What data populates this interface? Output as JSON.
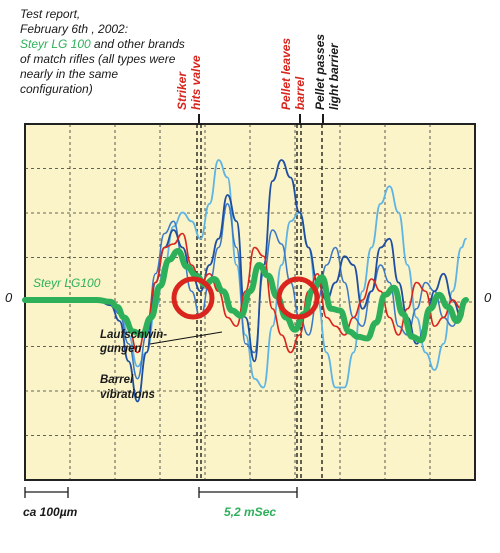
{
  "header_note": {
    "line1": "Test report,",
    "line2": "February 6th , 2002:",
    "line3_brand": "Steyr LG 100",
    "line3_rest": " and other brands",
    "line4": "of match rifles (all types were",
    "line5": "nearly in the same",
    "line6": "configuration)"
  },
  "markers": {
    "striker": [
      "Striker",
      "hits valve"
    ],
    "pellet_leaves": [
      "Pellet leaves",
      "barrel"
    ],
    "pellet_passes": [
      "Pellet passes",
      "light barrier"
    ]
  },
  "chart_labels": {
    "zero_left": "0",
    "zero_right": "0",
    "steyr": "Steyr LG100",
    "laufschwin_1": "Laufschwin-",
    "laufschwin_2": "gungen",
    "barrel_1": "Barrel",
    "barrel_2": "vibrations"
  },
  "scale": {
    "left": "ca 100µm",
    "right": "5,2 mSec"
  },
  "colors": {
    "background": "#fbf4c9",
    "grid": "#333333",
    "steyr_green": "#2eb05a",
    "red": "#d9251d",
    "dark_blue": "#1f4fa0",
    "mid_blue": "#3b78c5",
    "light_blue": "#5fb4e4",
    "marker_red": "#d9251d"
  },
  "chart_data": {
    "type": "line",
    "xlabel": "",
    "ylabel": "",
    "series": [
      {
        "name": "Steyr LG100",
        "color": "#2eb05a",
        "width": 6,
        "x": [
          0.0,
          0.16,
          0.19,
          0.205,
          0.22,
          0.24,
          0.26,
          0.28,
          0.3,
          0.32,
          0.34,
          0.36,
          0.38,
          0.4,
          0.42,
          0.44,
          0.46,
          0.48,
          0.5,
          0.52,
          0.54,
          0.56,
          0.58,
          0.6,
          0.62,
          0.64,
          0.66,
          0.68,
          0.7,
          0.72,
          0.74,
          0.76,
          0.78,
          0.8,
          0.82,
          0.84,
          0.86,
          0.88,
          0.9,
          0.92,
          0.94,
          0.96,
          0.98
        ],
        "y": [
          0.0,
          0.0,
          -0.01,
          -0.04,
          -0.1,
          -0.18,
          -0.2,
          -0.1,
          0.08,
          0.23,
          0.28,
          0.19,
          0.14,
          0.09,
          0.12,
          0.05,
          -0.06,
          -0.09,
          0.05,
          0.2,
          0.14,
          0.02,
          -0.1,
          -0.17,
          -0.08,
          0.06,
          0.13,
          -0.05,
          -0.06,
          -0.18,
          -0.21,
          -0.22,
          -0.13,
          0.03,
          0.07,
          -0.08,
          -0.21,
          -0.23,
          -0.05,
          0.03,
          -0.04,
          -0.12,
          0.0
        ]
      },
      {
        "name": "",
        "color": "#d9251d",
        "width": 1.6,
        "x": [
          0.16,
          0.19,
          0.21,
          0.23,
          0.25,
          0.27,
          0.29,
          0.31,
          0.33,
          0.35,
          0.37,
          0.39,
          0.41,
          0.43,
          0.45,
          0.47,
          0.49,
          0.51,
          0.53,
          0.55,
          0.57,
          0.59,
          0.61,
          0.63,
          0.65,
          0.67,
          0.69,
          0.71,
          0.73,
          0.75,
          0.77,
          0.79,
          0.81,
          0.83,
          0.85,
          0.87,
          0.89,
          0.91,
          0.93,
          0.95,
          0.97,
          0.98
        ],
        "y": [
          0.0,
          -0.02,
          -0.05,
          -0.15,
          -0.3,
          -0.15,
          0.1,
          0.3,
          0.32,
          0.38,
          0.2,
          0.1,
          0.15,
          0.05,
          -0.1,
          -0.15,
          0.05,
          0.3,
          0.25,
          -0.05,
          -0.2,
          -0.3,
          -0.2,
          0.05,
          0.15,
          -0.1,
          -0.15,
          -0.2,
          -0.1,
          0.0,
          0.12,
          0.05,
          -0.1,
          -0.2,
          -0.05,
          0.1,
          0.05,
          -0.15,
          -0.1,
          0.0,
          -0.05,
          0.0
        ]
      },
      {
        "name": "",
        "color": "#1f4fa0",
        "width": 1.8,
        "x": [
          0.16,
          0.19,
          0.21,
          0.23,
          0.25,
          0.27,
          0.29,
          0.31,
          0.33,
          0.35,
          0.37,
          0.39,
          0.41,
          0.43,
          0.45,
          0.47,
          0.49,
          0.51,
          0.53,
          0.55,
          0.57,
          0.59,
          0.61,
          0.63,
          0.65,
          0.67,
          0.69,
          0.71,
          0.73,
          0.75,
          0.77,
          0.79,
          0.81,
          0.83,
          0.85,
          0.87,
          0.89,
          0.91,
          0.93,
          0.95,
          0.97,
          0.98
        ],
        "y": [
          0.0,
          -0.03,
          -0.12,
          -0.35,
          -0.58,
          -0.3,
          0.1,
          0.3,
          0.4,
          0.3,
          0.15,
          0.05,
          0.2,
          0.35,
          0.6,
          0.45,
          -0.1,
          -0.35,
          0.2,
          0.68,
          0.8,
          0.7,
          0.5,
          0.3,
          0.1,
          0.0,
          0.1,
          0.25,
          0.2,
          -0.05,
          0.05,
          0.3,
          0.35,
          0.1,
          -0.1,
          -0.25,
          -0.15,
          0.05,
          0.15,
          0.0,
          -0.1,
          0.0
        ]
      },
      {
        "name": "",
        "color": "#3b78c5",
        "width": 1.5,
        "x": [
          0.16,
          0.19,
          0.21,
          0.23,
          0.25,
          0.27,
          0.29,
          0.31,
          0.33,
          0.35,
          0.37,
          0.39,
          0.41,
          0.43,
          0.45,
          0.47,
          0.49,
          0.51,
          0.53,
          0.55,
          0.57,
          0.59,
          0.61,
          0.63,
          0.65,
          0.67,
          0.69,
          0.71,
          0.73,
          0.75,
          0.77,
          0.79,
          0.81,
          0.83,
          0.85,
          0.87,
          0.89,
          0.91,
          0.93,
          0.95,
          0.97,
          0.98
        ],
        "y": [
          0.0,
          -0.02,
          -0.08,
          -0.25,
          -0.45,
          -0.2,
          0.15,
          0.38,
          0.45,
          0.25,
          0.05,
          -0.1,
          0.1,
          0.3,
          0.55,
          0.3,
          -0.25,
          -0.3,
          0.15,
          0.4,
          0.32,
          0.1,
          -0.1,
          -0.2,
          0.0,
          0.2,
          0.3,
          0.1,
          -0.1,
          -0.15,
          0.05,
          0.2,
          0.1,
          -0.15,
          -0.2,
          -0.05,
          0.1,
          0.05,
          -0.1,
          -0.15,
          -0.05,
          0.0
        ]
      },
      {
        "name": "",
        "color": "#5fb4e4",
        "width": 1.8,
        "x": [
          0.16,
          0.19,
          0.21,
          0.23,
          0.25,
          0.27,
          0.29,
          0.31,
          0.33,
          0.35,
          0.37,
          0.39,
          0.41,
          0.43,
          0.45,
          0.47,
          0.49,
          0.51,
          0.53,
          0.55,
          0.57,
          0.59,
          0.61,
          0.63,
          0.65,
          0.67,
          0.69,
          0.71,
          0.73,
          0.75,
          0.77,
          0.79,
          0.81,
          0.83,
          0.85,
          0.87,
          0.89,
          0.91,
          0.93,
          0.95,
          0.97,
          0.98
        ],
        "y": [
          0.0,
          -0.01,
          -0.05,
          -0.2,
          -0.38,
          -0.3,
          -0.05,
          0.2,
          0.42,
          0.5,
          0.45,
          0.35,
          0.55,
          0.8,
          0.7,
          0.2,
          -0.2,
          -0.45,
          -0.5,
          -0.15,
          0.2,
          0.45,
          0.5,
          0.3,
          0.0,
          -0.3,
          -0.5,
          -0.5,
          -0.3,
          0.05,
          0.3,
          0.55,
          0.65,
          0.5,
          0.2,
          -0.1,
          -0.3,
          -0.4,
          -0.25,
          0.05,
          0.3,
          0.35
        ]
      }
    ],
    "annotations": [
      "Striker hits valve",
      "Pellet leaves barrel",
      "Pellet passes light barrier",
      "Steyr LG100",
      "Laufschwin-gungen",
      "Barrel vibrations"
    ],
    "scale_bars": [
      "ca 100µm",
      "5,2 mSec"
    ],
    "grid": true,
    "legend": "none"
  }
}
